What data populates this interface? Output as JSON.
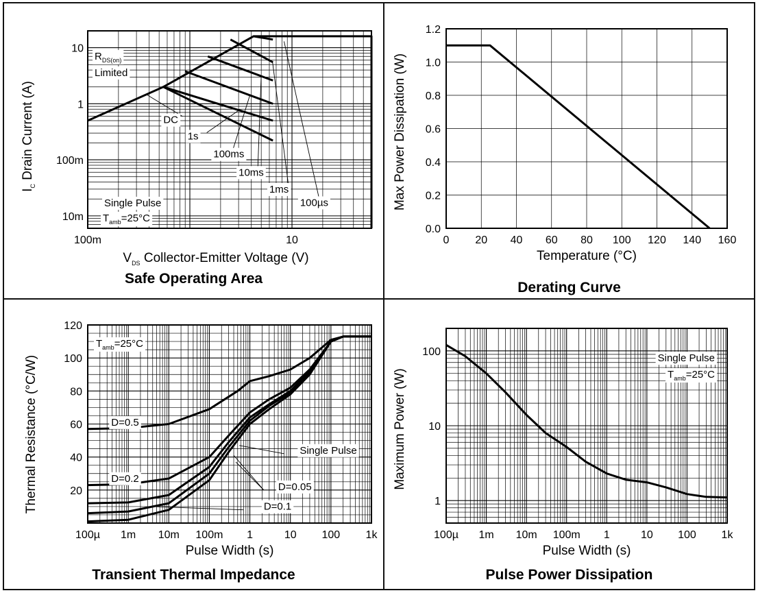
{
  "chart_data": [
    {
      "id": "soa",
      "type": "line",
      "title": "Safe Operating Area",
      "xlabel": "V_DS Collector-Emitter Voltage (V)",
      "ylabel": "I_C Drain Current (A)",
      "xscale": "log",
      "yscale": "log",
      "xlim": [
        0.1,
        60
      ],
      "ylim": [
        0.006,
        20
      ],
      "xticks": [
        {
          "v": 0.1,
          "label": "100m"
        },
        {
          "v": 10,
          "label": "10"
        }
      ],
      "yticks": [
        {
          "v": 0.01,
          "label": "10m"
        },
        {
          "v": 0.1,
          "label": "100m"
        },
        {
          "v": 1,
          "label": "1"
        },
        {
          "v": 10,
          "label": "10"
        }
      ],
      "series": [
        {
          "name": "DC",
          "x": [
            0.1,
            0.55,
            6.5
          ],
          "y": [
            0.5,
            2.0,
            0.22
          ]
        },
        {
          "name": "1s",
          "x": [
            0.55,
            6.5
          ],
          "y": [
            2.0,
            0.5
          ]
        },
        {
          "name": "100ms",
          "x": [
            0.9,
            6.5
          ],
          "y": [
            3.8,
            1.0
          ]
        },
        {
          "name": "10ms",
          "x": [
            1.5,
            6.5
          ],
          "y": [
            7.0,
            2.6
          ]
        },
        {
          "name": "1ms",
          "x": [
            2.5,
            6.5
          ],
          "y": [
            14,
            5.5
          ]
        },
        {
          "name": "100µs",
          "x": [
            4.2,
            6.5
          ],
          "y": [
            16,
            14
          ]
        },
        {
          "name": "limit",
          "x": [
            0.55,
            4.2,
            60,
            60
          ],
          "y": [
            2.0,
            16,
            16,
            0.006
          ]
        }
      ],
      "annotations": [
        {
          "text": "DC",
          "x": 0.55,
          "y": 0.45
        },
        {
          "text": "1s",
          "x": 0.95,
          "y": 0.23
        },
        {
          "text": "100ms",
          "x": 1.7,
          "y": 0.11
        },
        {
          "text": "10ms",
          "x": 3.0,
          "y": 0.052
        },
        {
          "text": "1ms",
          "x": 6.0,
          "y": 0.026
        },
        {
          "text": "100µs",
          "x": 12,
          "y": 0.015
        }
      ],
      "notes": [
        "Single Pulse",
        "T_amb=25°C"
      ],
      "rds_label": [
        "R",
        "DS(on)",
        "Limited"
      ]
    },
    {
      "id": "derating",
      "type": "line",
      "title": "Derating Curve",
      "xlabel": "Temperature (°C)",
      "ylabel": "Max Power Dissipation (W)",
      "xscale": "linear",
      "yscale": "linear",
      "xlim": [
        0,
        160
      ],
      "ylim": [
        0,
        1.2
      ],
      "xticks": [
        0,
        20,
        40,
        60,
        80,
        100,
        120,
        140,
        160
      ],
      "yticks": [
        0,
        0.2,
        0.4,
        0.6,
        0.8,
        1.0,
        1.2
      ],
      "ytick_labels": [
        "0.0",
        "0.2",
        "0.4",
        "0.6",
        "0.8",
        "1.0",
        "1.2"
      ],
      "series": [
        {
          "name": "",
          "x": [
            0,
            25,
            150
          ],
          "y": [
            1.1,
            1.1,
            0
          ]
        }
      ]
    },
    {
      "id": "transient",
      "type": "line",
      "title": "Transient Thermal Impedance",
      "xlabel": "Pulse Width (s)",
      "ylabel": "Thermal Resistance (°C/W)",
      "xscale": "log",
      "yscale": "linear",
      "xlim": [
        0.0001,
        1000
      ],
      "ylim": [
        0,
        120
      ],
      "xticks": [
        {
          "v": 0.0001,
          "label": "100µ"
        },
        {
          "v": 0.001,
          "label": "1m"
        },
        {
          "v": 0.01,
          "label": "10m"
        },
        {
          "v": 0.1,
          "label": "100m"
        },
        {
          "v": 1,
          "label": "1"
        },
        {
          "v": 10,
          "label": "10"
        },
        {
          "v": 100,
          "label": "100"
        },
        {
          "v": 1000,
          "label": "1k"
        }
      ],
      "yticks": [
        20,
        40,
        60,
        80,
        100,
        120
      ],
      "series": [
        {
          "name": "D=0.5",
          "x": [
            0.0001,
            0.001,
            0.01,
            0.1,
            0.5,
            1,
            3,
            10,
            30,
            100,
            200,
            1000
          ],
          "y": [
            57,
            57.5,
            60,
            69,
            80,
            86,
            89,
            93,
            100,
            111,
            113,
            113
          ]
        },
        {
          "name": "D=0.2",
          "x": [
            0.0001,
            0.001,
            0.01,
            0.1,
            0.3,
            1,
            3,
            10,
            30,
            100,
            200,
            1000
          ],
          "y": [
            23,
            23.5,
            27,
            40,
            53,
            67,
            75,
            82,
            93,
            110,
            113,
            113
          ]
        },
        {
          "name": "D=0.1",
          "x": [
            0.0001,
            0.001,
            0.01,
            0.1,
            0.3,
            1,
            3,
            10,
            30,
            100,
            200,
            1000
          ],
          "y": [
            12,
            12.5,
            17,
            34,
            49,
            64,
            72,
            80,
            92,
            110,
            113,
            113
          ]
        },
        {
          "name": "D=0.05",
          "x": [
            0.0001,
            0.001,
            0.01,
            0.1,
            0.3,
            1,
            3,
            10,
            30,
            100,
            200,
            1000
          ],
          "y": [
            6,
            7,
            12,
            30,
            46,
            62,
            71,
            79,
            91,
            110,
            113,
            113
          ]
        },
        {
          "name": "Single Pulse",
          "x": [
            0.0001,
            0.001,
            0.01,
            0.1,
            0.3,
            1,
            3,
            10,
            30,
            100,
            200,
            1000
          ],
          "y": [
            1,
            2,
            8,
            26,
            43,
            60,
            69,
            78,
            90,
            110,
            113,
            113
          ]
        }
      ],
      "annotations": [
        {
          "text": "D=0.5",
          "x": 0.00038,
          "y": 59
        },
        {
          "text": "D=0.2",
          "x": 0.00038,
          "y": 25
        },
        {
          "text": "Single Pulse",
          "x": 17,
          "y": 42
        },
        {
          "text": "D=0.05",
          "x": 5,
          "y": 20
        },
        {
          "text": "D=0.1",
          "x": 2.2,
          "y": 8
        }
      ],
      "leaders": [
        {
          "from": [
            0.55,
            47
          ],
          "to": [
            7,
            42
          ]
        },
        {
          "from": [
            0.45,
            37
          ],
          "to": [
            2.2,
            20
          ]
        },
        {
          "from": [
            0.4,
            41
          ],
          "to": [
            2.2,
            20
          ]
        },
        {
          "from": [
            0.004,
            10
          ],
          "to": [
            0.7,
            8
          ]
        }
      ],
      "notes": [
        "T_amb=25°C"
      ]
    },
    {
      "id": "pulsepower",
      "type": "line",
      "title": "Pulse Power Dissipation",
      "xlabel": "Pulse Width (s)",
      "ylabel": "Maximum Power (W)",
      "xscale": "log",
      "yscale": "log",
      "xlim": [
        0.0001,
        1000
      ],
      "ylim": [
        0.5,
        200
      ],
      "xticks": [
        {
          "v": 0.0001,
          "label": "100µ"
        },
        {
          "v": 0.001,
          "label": "1m"
        },
        {
          "v": 0.01,
          "label": "10m"
        },
        {
          "v": 0.1,
          "label": "100m"
        },
        {
          "v": 1,
          "label": "1"
        },
        {
          "v": 10,
          "label": "10"
        },
        {
          "v": 100,
          "label": "100"
        },
        {
          "v": 1000,
          "label": "1k"
        }
      ],
      "yticks": [
        {
          "v": 1,
          "label": "1"
        },
        {
          "v": 10,
          "label": "10"
        },
        {
          "v": 100,
          "label": "100"
        }
      ],
      "series": [
        {
          "name": "",
          "x": [
            0.0001,
            0.0003,
            0.001,
            0.003,
            0.01,
            0.03,
            0.1,
            0.3,
            1,
            3,
            10,
            30,
            100,
            300,
            1000
          ],
          "y": [
            120,
            85,
            50,
            28,
            14,
            8,
            5.2,
            3.3,
            2.3,
            1.9,
            1.75,
            1.5,
            1.22,
            1.12,
            1.1
          ]
        }
      ],
      "notes": [
        "Single Pulse",
        "T_amb=25°C"
      ]
    }
  ]
}
